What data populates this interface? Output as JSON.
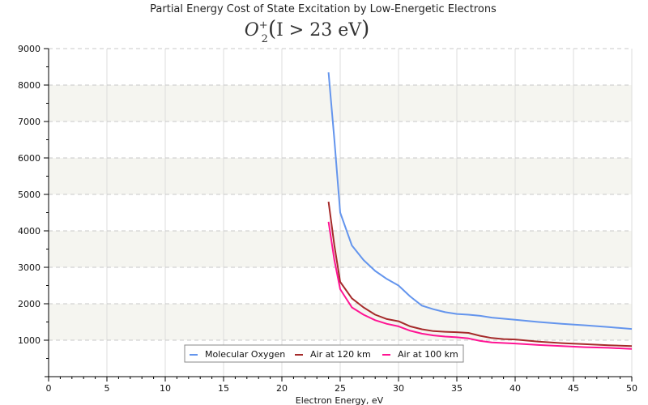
{
  "chart_data": {
    "type": "line",
    "title": "Partial Energy Cost of State Excitation by Low-Energetic Electrons",
    "subtitle": {
      "species": "O",
      "subscript": "2",
      "superscript": "+",
      "condition": "I > 23 eV"
    },
    "xlabel": "Electron Energy, eV",
    "ylabel": "",
    "xlim": [
      0,
      50
    ],
    "ylim": [
      0,
      9000
    ],
    "xticks": [
      0,
      5,
      10,
      15,
      20,
      25,
      30,
      35,
      40,
      45,
      50
    ],
    "yticks": [
      1000,
      2000,
      3000,
      4000,
      5000,
      6000,
      7000,
      8000,
      9000
    ],
    "x_minor_step": 1,
    "y_minor_step": 500,
    "grid": true,
    "alternating_bands": true,
    "legend_position": "bottom-center",
    "series": [
      {
        "name": "Molecular Oxygen",
        "color": "#6495ed",
        "x": [
          24,
          24.5,
          25,
          26,
          27,
          28,
          29,
          30,
          31,
          32,
          33,
          34,
          35,
          36,
          37,
          38,
          40,
          42,
          44,
          46,
          48,
          50
        ],
        "values": [
          8350,
          6500,
          4500,
          3600,
          3200,
          2900,
          2680,
          2500,
          2200,
          1950,
          1850,
          1770,
          1720,
          1700,
          1670,
          1620,
          1560,
          1500,
          1450,
          1410,
          1360,
          1310
        ]
      },
      {
        "name": "Air at 120 km",
        "color": "#a52a2a",
        "x": [
          24,
          24.5,
          25,
          26,
          27,
          28,
          29,
          30,
          31,
          32,
          33,
          34,
          35,
          36,
          37,
          38,
          39,
          40,
          42,
          44,
          46,
          48,
          50
        ],
        "values": [
          4800,
          3600,
          2600,
          2150,
          1900,
          1700,
          1580,
          1520,
          1380,
          1300,
          1250,
          1230,
          1220,
          1200,
          1120,
          1060,
          1030,
          1020,
          960,
          920,
          890,
          860,
          840
        ]
      },
      {
        "name": "Air at 100 km",
        "color": "#ff1493",
        "x": [
          24,
          24.5,
          25,
          26,
          27,
          28,
          29,
          30,
          31,
          32,
          33,
          34,
          35,
          36,
          37,
          38,
          40,
          42,
          44,
          46,
          48,
          50
        ],
        "values": [
          4250,
          3200,
          2400,
          1900,
          1700,
          1550,
          1450,
          1380,
          1260,
          1180,
          1130,
          1100,
          1080,
          1050,
          980,
          940,
          910,
          870,
          840,
          810,
          790,
          760
        ]
      }
    ]
  }
}
